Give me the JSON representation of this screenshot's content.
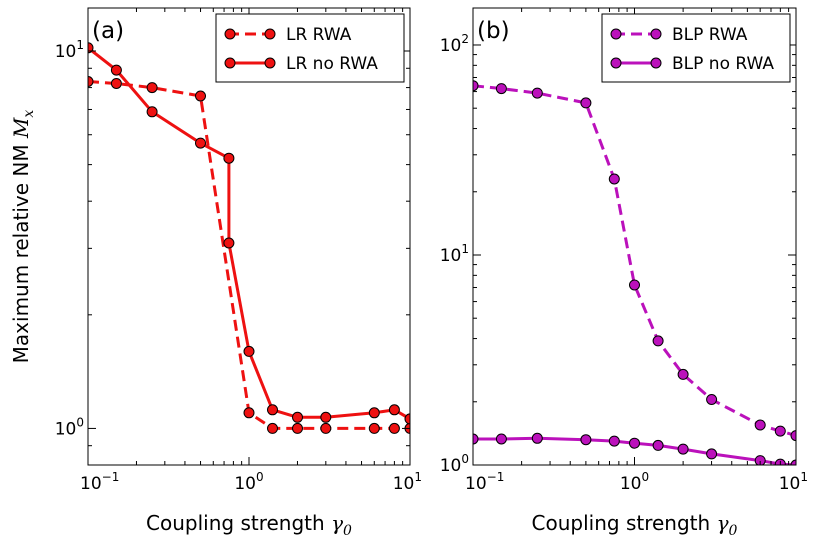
{
  "chart_data": [
    {
      "type": "line",
      "panel_label": "(a)",
      "xscale": "log",
      "yscale": "log",
      "xlim": [
        0.1,
        10
      ],
      "ylim": [
        0.8,
        13
      ],
      "xlabel": "Coupling strength",
      "xlabel_symbol": "γ",
      "xlabel_subscript": "0",
      "ylabel": "Maximum relative NM",
      "ylabel_symbol": "M",
      "ylabel_subscript": "x",
      "x_major_ticks": [
        0.1,
        1,
        10
      ],
      "x_tick_labels": [
        {
          "base": "10",
          "exp": "−1"
        },
        {
          "base": "10",
          "exp": "0"
        },
        {
          "base": "10",
          "exp": "1"
        }
      ],
      "y_major_ticks": [
        1,
        10
      ],
      "y_tick_labels": [
        {
          "base": "10",
          "exp": "0"
        },
        {
          "base": "10",
          "exp": "1"
        }
      ],
      "legend_location": "top-right",
      "series": [
        {
          "name": "LR RWA",
          "color": "#ee1111",
          "linestyle": "dashed",
          "x": [
            0.1,
            0.15,
            0.25,
            0.5,
            1.0,
            1.4,
            2.0,
            3.0,
            6.0,
            8.0,
            10.0
          ],
          "y": [
            8.3,
            8.2,
            8.0,
            7.6,
            1.1,
            1.0,
            1.0,
            1.0,
            1.0,
            1.0,
            1.0
          ]
        },
        {
          "name": "LR no RWA",
          "color": "#ee1111",
          "linestyle": "solid",
          "x": [
            0.1,
            0.15,
            0.25,
            0.5,
            0.75,
            0.75,
            1.0,
            1.4,
            2.0,
            3.0,
            6.0,
            8.0,
            10.0
          ],
          "y": [
            10.2,
            8.9,
            6.9,
            5.7,
            5.2,
            3.1,
            1.6,
            1.12,
            1.07,
            1.07,
            1.1,
            1.12,
            1.06
          ]
        }
      ]
    },
    {
      "type": "line",
      "panel_label": "(b)",
      "xscale": "log",
      "yscale": "log",
      "xlim": [
        0.1,
        10
      ],
      "ylim": [
        1,
        150
      ],
      "xlabel": "Coupling strength",
      "xlabel_symbol": "γ",
      "xlabel_subscript": "0",
      "x_major_ticks": [
        0.1,
        1,
        10
      ],
      "x_tick_labels": [
        {
          "base": "10",
          "exp": "−1"
        },
        {
          "base": "10",
          "exp": "0"
        },
        {
          "base": "10",
          "exp": "1"
        }
      ],
      "y_major_ticks": [
        1,
        10,
        100
      ],
      "y_tick_labels": [
        {
          "base": "10",
          "exp": "0"
        },
        {
          "base": "10",
          "exp": "1"
        },
        {
          "base": "10",
          "exp": "2"
        }
      ],
      "legend_location": "top-right",
      "series": [
        {
          "name": "BLP RWA",
          "color": "#bb11bb",
          "linestyle": "dashed",
          "x": [
            0.1,
            0.15,
            0.25,
            0.5,
            0.75,
            1.0,
            1.4,
            2.0,
            3.0,
            6.0,
            8.0,
            10.0
          ],
          "y": [
            64,
            62,
            59,
            53,
            23,
            7.2,
            3.9,
            2.7,
            2.05,
            1.55,
            1.45,
            1.38
          ]
        },
        {
          "name": "BLP no RWA",
          "color": "#bb11bb",
          "linestyle": "solid",
          "x": [
            0.1,
            0.15,
            0.25,
            0.5,
            0.75,
            1.0,
            1.4,
            2.0,
            3.0,
            6.0,
            8.0,
            10.0
          ],
          "y": [
            1.33,
            1.33,
            1.34,
            1.32,
            1.3,
            1.27,
            1.24,
            1.19,
            1.13,
            1.05,
            1.01,
            1.0
          ]
        }
      ]
    }
  ]
}
